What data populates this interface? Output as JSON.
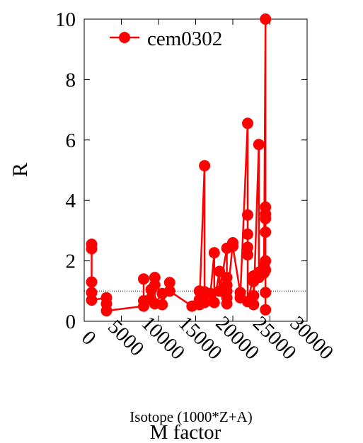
{
  "chart_data": {
    "type": "line",
    "title": "",
    "xlabel": "Isotope (1000*Z+A)",
    "ylabel": "R",
    "extra_label": "M factor",
    "xlim": [
      0,
      30000
    ],
    "ylim": [
      0,
      10
    ],
    "xticks": [
      0,
      5000,
      10000,
      15000,
      20000,
      25000,
      30000
    ],
    "yticks": [
      0,
      2,
      4,
      6,
      8,
      10
    ],
    "reference_line": 1,
    "grid": false,
    "legend_position": "top-left",
    "colors": {
      "series": "#ff0000",
      "reference": "#000000"
    },
    "series": [
      {
        "name": "cem0302",
        "points": [
          [
            1000,
            2.55
          ],
          [
            1000,
            2.4
          ],
          [
            1000,
            1.3
          ],
          [
            1000,
            0.95
          ],
          [
            1000,
            0.7
          ],
          [
            3000,
            0.78
          ],
          [
            3000,
            0.58
          ],
          [
            3000,
            0.35
          ],
          [
            8000,
            0.5
          ],
          [
            8000,
            1.4
          ],
          [
            8000,
            0.68
          ],
          [
            9000,
            1.05
          ],
          [
            9000,
            0.72
          ],
          [
            9500,
            1.45
          ],
          [
            9500,
            1.2
          ],
          [
            9500,
            0.58
          ],
          [
            10500,
            0.92
          ],
          [
            10500,
            0.55
          ],
          [
            11500,
            1.28
          ],
          [
            11500,
            1.0
          ],
          [
            14500,
            0.5
          ],
          [
            15500,
            1.0
          ],
          [
            15500,
            0.72
          ],
          [
            15500,
            0.55
          ],
          [
            16200,
            5.15
          ],
          [
            16200,
            0.98
          ],
          [
            16200,
            0.62
          ],
          [
            17000,
            0.92
          ],
          [
            17500,
            2.27
          ],
          [
            17500,
            0.62
          ],
          [
            18200,
            1.65
          ],
          [
            18200,
            1.0
          ],
          [
            19200,
            2.42
          ],
          [
            19200,
            1.45
          ],
          [
            19200,
            1.2
          ],
          [
            19200,
            1.0
          ],
          [
            19200,
            0.78
          ],
          [
            19200,
            0.58
          ],
          [
            20000,
            2.6
          ],
          [
            20000,
            2.48
          ],
          [
            21000,
            0.95
          ],
          [
            21000,
            0.78
          ],
          [
            22000,
            6.55
          ],
          [
            22000,
            3.52
          ],
          [
            22000,
            2.88
          ],
          [
            22000,
            2.45
          ],
          [
            22000,
            2.2
          ],
          [
            22000,
            0.65
          ],
          [
            22800,
            1.5
          ],
          [
            22800,
            1.32
          ],
          [
            22800,
            0.85
          ],
          [
            22800,
            0.55
          ],
          [
            23500,
            5.85
          ],
          [
            23500,
            1.62
          ],
          [
            23500,
            1.45
          ],
          [
            24200,
            1.6
          ],
          [
            24200,
            1.82
          ],
          [
            24400,
            10
          ],
          [
            24400,
            3.78
          ],
          [
            24400,
            3.55
          ],
          [
            24400,
            3.4
          ],
          [
            24400,
            2.95
          ],
          [
            24400,
            2.0
          ],
          [
            24400,
            1.7
          ],
          [
            24400,
            0.95
          ],
          [
            24400,
            0.38
          ]
        ]
      }
    ]
  }
}
